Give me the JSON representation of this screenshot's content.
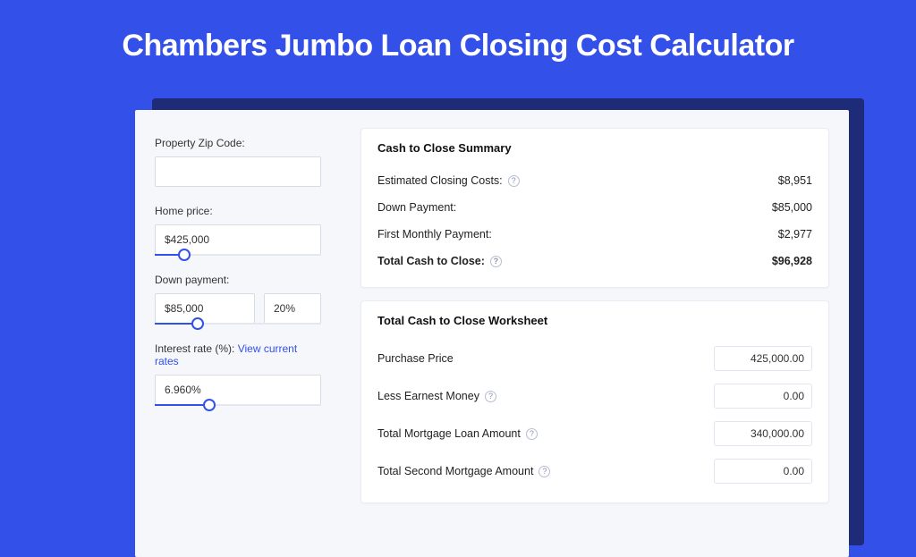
{
  "colors": {
    "page_bg": "#3350e8",
    "shadow_bg": "#1d2b78",
    "card_bg": "#f6f7fb",
    "panel_bg": "#ffffff",
    "accent": "#3350e8"
  },
  "title": "Chambers Jumbo Loan Closing Cost Calculator",
  "sidebar": {
    "zip": {
      "label": "Property Zip Code:",
      "value": ""
    },
    "home_price": {
      "label": "Home price:",
      "value": "$425,000",
      "slider_pct": 18
    },
    "down_payment": {
      "label": "Down payment:",
      "value": "$85,000",
      "pct_value": "20%",
      "slider_pct": 26
    },
    "interest_rate": {
      "label": "Interest rate (%): ",
      "link_text": "View current rates",
      "value": "6.960%",
      "slider_pct": 33
    }
  },
  "summary": {
    "heading": "Cash to Close Summary",
    "rows": [
      {
        "label": "Estimated Closing Costs:",
        "help": true,
        "value": "$8,951",
        "bold": false
      },
      {
        "label": "Down Payment:",
        "help": false,
        "value": "$85,000",
        "bold": false
      },
      {
        "label": "First Monthly Payment:",
        "help": false,
        "value": "$2,977",
        "bold": false
      },
      {
        "label": "Total Cash to Close:",
        "help": true,
        "value": "$96,928",
        "bold": true
      }
    ]
  },
  "worksheet": {
    "heading": "Total Cash to Close Worksheet",
    "rows": [
      {
        "label": "Purchase Price",
        "help": false,
        "value": "425,000.00"
      },
      {
        "label": "Less Earnest Money",
        "help": true,
        "value": "0.00"
      },
      {
        "label": "Total Mortgage Loan Amount",
        "help": true,
        "value": "340,000.00"
      },
      {
        "label": "Total Second Mortgage Amount",
        "help": true,
        "value": "0.00"
      }
    ]
  }
}
